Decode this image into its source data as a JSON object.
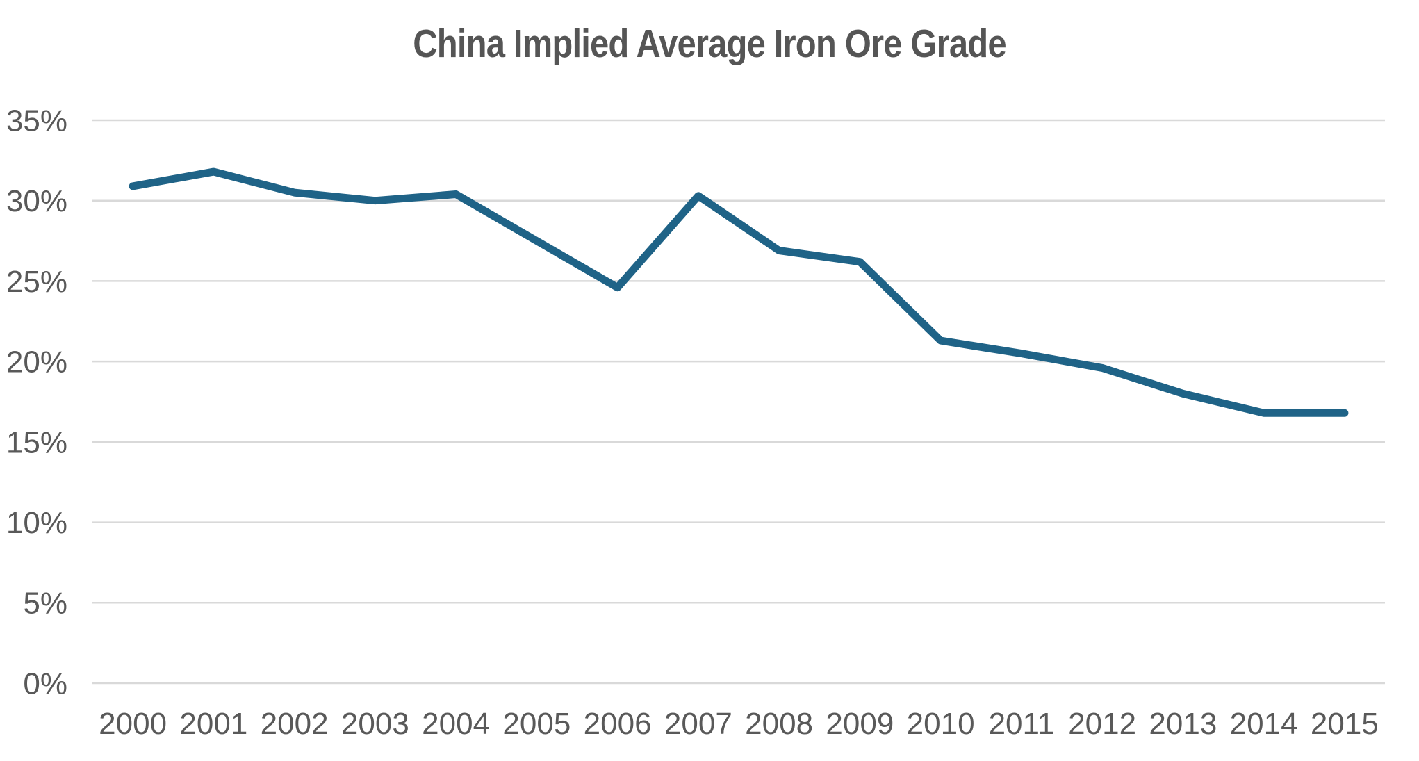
{
  "title": "China Implied Average Iron Ore Grade",
  "chart_data": {
    "type": "line",
    "title": "China Implied Average Iron Ore Grade",
    "categories": [
      "2000",
      "2001",
      "2002",
      "2003",
      "2004",
      "2005",
      "2006",
      "2007",
      "2008",
      "2009",
      "2010",
      "2011",
      "2012",
      "2013",
      "2014",
      "2015"
    ],
    "values": [
      30.9,
      31.8,
      30.5,
      30.0,
      30.4,
      27.5,
      24.6,
      30.3,
      26.9,
      26.2,
      21.3,
      20.5,
      19.6,
      18.0,
      16.8,
      16.8
    ],
    "series_name": "China implied average iron ore grade (%)",
    "xlabel": "",
    "ylabel": "",
    "ylim": [
      0,
      35
    ],
    "y_tick_values": [
      0,
      5,
      10,
      15,
      20,
      25,
      30,
      35
    ],
    "y_tick_labels": [
      "0%",
      "5%",
      "10%",
      "15%",
      "20%",
      "25%",
      "30%",
      "35%"
    ],
    "grid": true,
    "legend": "none",
    "line_color": "#1f6387",
    "gridline_color": "#d9d9d9",
    "text_color": "#595959",
    "background_color": "#ffffff"
  }
}
